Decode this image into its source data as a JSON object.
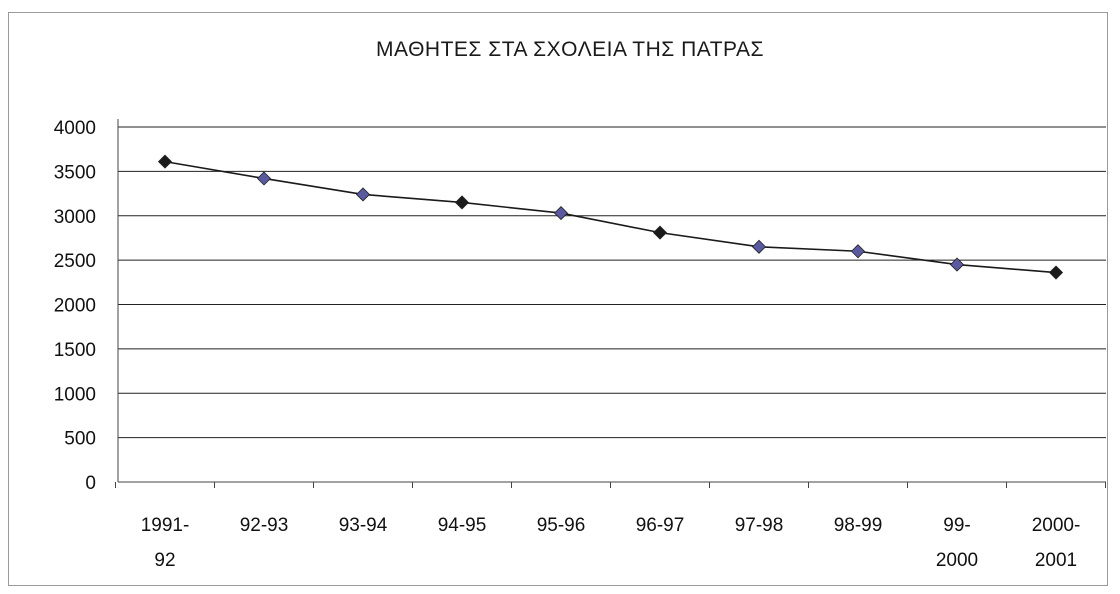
{
  "chart_data": {
    "type": "line",
    "title": "ΜΑΘΗΤΕΣ ΣΤΑ ΣΧΟΛΕΙΑ ΤΗΣ ΠΑΤΡΑΣ",
    "xlabel": "",
    "ylabel": "",
    "categories": [
      [
        "1991-",
        "92"
      ],
      [
        "92-93"
      ],
      [
        "93-94"
      ],
      [
        "94-95"
      ],
      [
        "95-96"
      ],
      [
        "96-97"
      ],
      [
        "97-98"
      ],
      [
        "98-99"
      ],
      [
        "99-",
        "2000"
      ],
      [
        "2000-",
        "2001"
      ]
    ],
    "series": [
      {
        "values": [
          3610,
          3420,
          3240,
          3150,
          3030,
          2810,
          2650,
          2600,
          2450,
          2360
        ]
      }
    ],
    "ylim": [
      0,
      4000
    ],
    "yticks": [
      0,
      500,
      1000,
      1500,
      2000,
      2500,
      3000,
      3500,
      4000
    ],
    "grid": true,
    "colors": {
      "line": "#1a1a1a",
      "marker_a": "#1a1a1a",
      "marker_b": "#5a5aa0",
      "grid": "#222222"
    }
  }
}
